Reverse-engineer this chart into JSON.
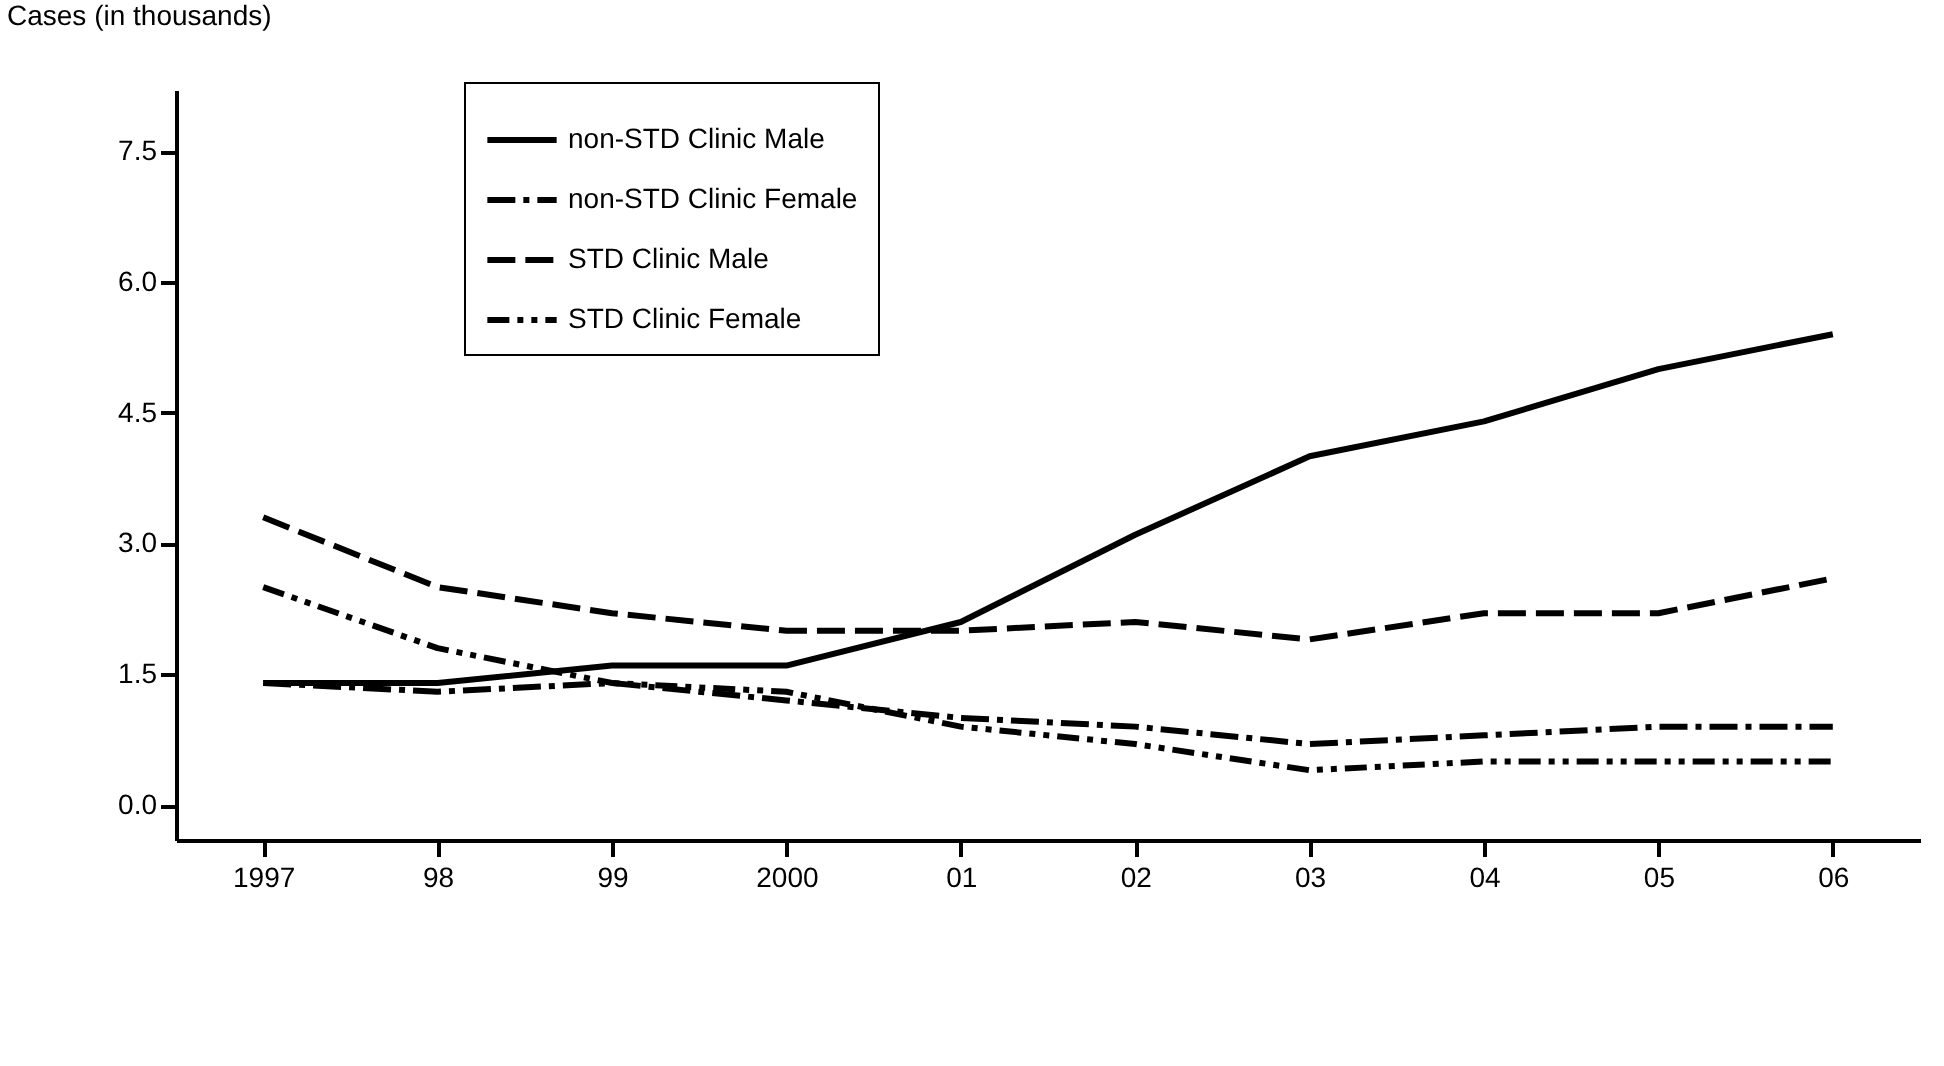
{
  "chart_data": {
    "type": "line",
    "ylabel": "Cases (in thousands)",
    "categories": [
      "1997",
      "98",
      "99",
      "2000",
      "01",
      "02",
      "03",
      "04",
      "05",
      "06"
    ],
    "series": [
      {
        "name": "non-STD Clinic Male",
        "color": "#000000",
        "line_style": "solid",
        "values": [
          1.4,
          1.4,
          1.6,
          1.6,
          2.1,
          3.1,
          4.0,
          4.4,
          5.0,
          5.4
        ]
      },
      {
        "name": "non-STD Clinic Female",
        "color": "#000000",
        "line_style": "dashdot",
        "values": [
          1.4,
          1.3,
          1.4,
          1.2,
          1.0,
          0.9,
          0.7,
          0.8,
          0.9,
          0.9
        ]
      },
      {
        "name": "STD Clinic Male",
        "color": "#000000",
        "line_style": "dashed",
        "values": [
          3.3,
          2.5,
          2.2,
          2.0,
          2.0,
          2.1,
          1.9,
          2.2,
          2.2,
          2.6
        ]
      },
      {
        "name": "STD Clinic Female",
        "color": "#000000",
        "line_style": "dashdotdot",
        "values": [
          2.5,
          1.8,
          1.4,
          1.3,
          0.9,
          0.7,
          0.4,
          0.5,
          0.5,
          0.5
        ]
      }
    ],
    "ylim": [
      -0.4,
      8.2
    ],
    "yticks": [
      {
        "value": 0,
        "label": "0.0"
      },
      1.5,
      {
        "value": 3,
        "label": "3.0"
      },
      4.5,
      {
        "value": 6,
        "label": "6.0"
      },
      7.5
    ],
    "grid": false,
    "legend": "top left",
    "marker": "none"
  }
}
